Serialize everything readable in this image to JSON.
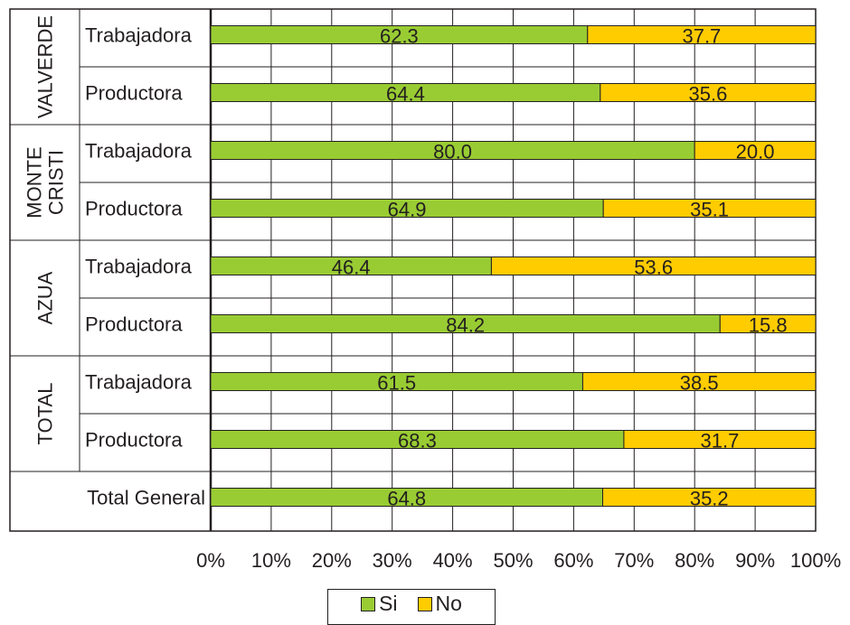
{
  "chart_data": {
    "type": "bar",
    "orientation": "horizontal",
    "stacked": true,
    "groups": [
      {
        "name": "VALVERDE",
        "categories": [
          "Trabajadora",
          "Productora"
        ]
      },
      {
        "name": "MONTE CRISTI",
        "lines": [
          "MONTE",
          "CRISTI"
        ],
        "categories": [
          "Trabajadora",
          "Productora"
        ]
      },
      {
        "name": "AZUA",
        "categories": [
          "Trabajadora",
          "Productora"
        ]
      },
      {
        "name": "TOTAL",
        "categories": [
          "Trabajadora",
          "Productora"
        ]
      }
    ],
    "total_label": "Total General",
    "series": [
      {
        "name": "Si",
        "color": "#99cc33",
        "values": [
          62.3,
          64.4,
          80.0,
          64.9,
          46.4,
          84.2,
          61.5,
          68.3,
          64.8
        ]
      },
      {
        "name": "No",
        "color": "#ffcc00",
        "values": [
          37.7,
          35.6,
          20.0,
          35.1,
          53.6,
          15.8,
          38.5,
          31.7,
          35.2
        ]
      }
    ],
    "x_ticks": [
      "0%",
      "10%",
      "20%",
      "30%",
      "40%",
      "50%",
      "60%",
      "70%",
      "80%",
      "90%",
      "100%"
    ],
    "xlim": [
      0,
      100
    ],
    "grid": true,
    "legend_position": "bottom-center"
  }
}
